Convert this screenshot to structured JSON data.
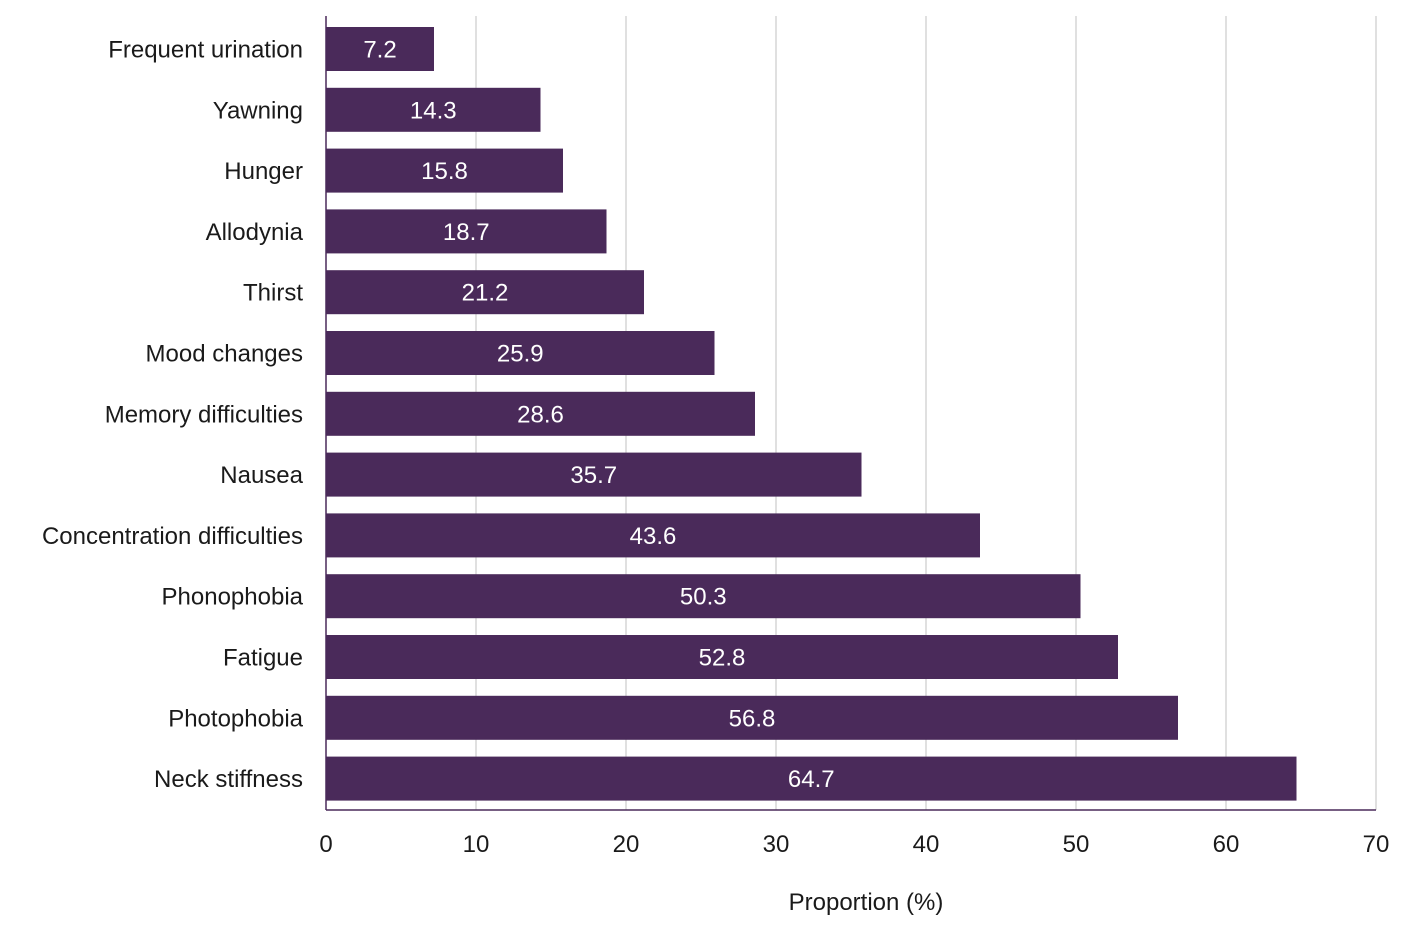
{
  "chart_data": {
    "type": "bar",
    "orientation": "horizontal",
    "categories": [
      "Frequent urination",
      "Yawning",
      "Hunger",
      "Allodynia",
      "Thirst",
      "Mood changes",
      "Memory difficulties",
      "Nausea",
      "Concentration difficulties",
      "Phonophobia",
      "Fatigue",
      "Photophobia",
      "Neck stiffness"
    ],
    "values": [
      7.2,
      14.3,
      15.8,
      18.7,
      21.2,
      25.9,
      28.6,
      35.7,
      43.6,
      50.3,
      52.8,
      56.8,
      64.7
    ],
    "value_labels": [
      "7.2",
      "14.3",
      "15.8",
      "18.7",
      "21.2",
      "25.9",
      "28.6",
      "35.7",
      "43.6",
      "50.3",
      "52.8",
      "56.8",
      "64.7"
    ],
    "xlabel": "Proportion (%)",
    "xlim": [
      0,
      70
    ],
    "xticks": [
      0,
      10,
      20,
      30,
      40,
      50,
      60,
      70
    ],
    "xtick_labels": [
      "0",
      "10",
      "20",
      "30",
      "40",
      "50",
      "60",
      "70"
    ],
    "grid": true,
    "colors": {
      "bar": "#4a2a5a",
      "gridline": "#cccccc",
      "axis": "#4a2a5a",
      "value_text": "#ffffff"
    }
  }
}
